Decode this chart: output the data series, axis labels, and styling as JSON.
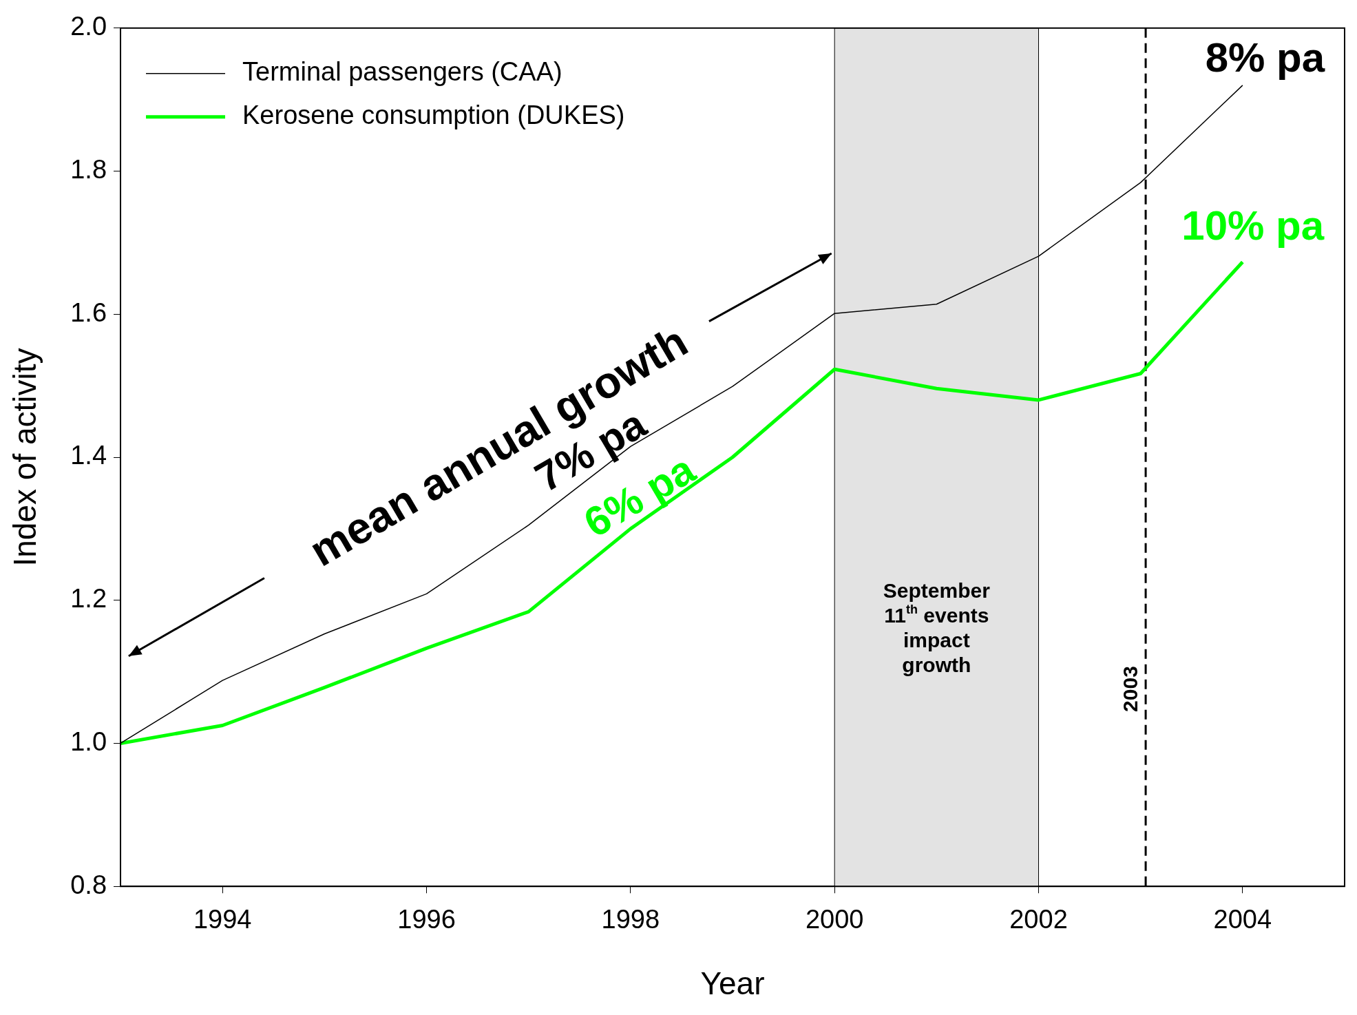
{
  "chart_data": {
    "type": "line",
    "xlabel": "Year",
    "ylabel": "Index of activity",
    "x": [
      1993,
      1994,
      1995,
      1996,
      1997,
      1998,
      1999,
      2000,
      2001,
      2002,
      2003,
      2004
    ],
    "series": [
      {
        "name": "Terminal passengers (CAA)",
        "color": "#000000",
        "values": [
          1.0,
          1.088,
          1.153,
          1.209,
          1.305,
          1.415,
          1.499,
          1.601,
          1.614,
          1.681,
          1.784,
          1.92
        ]
      },
      {
        "name": "Kerosene consumption (DUKES)",
        "color": "#00ff00",
        "values": [
          1.0,
          1.025,
          1.078,
          1.133,
          1.184,
          1.3,
          1.4,
          1.523,
          1.496,
          1.48,
          1.517,
          1.673
        ]
      }
    ],
    "xlim": [
      1993,
      2005
    ],
    "xticks": [
      1994,
      1996,
      1998,
      2000,
      2002,
      2004
    ],
    "ylim": [
      0.8,
      2.0
    ],
    "yticks": [
      {
        "value": 0.8,
        "label": "0.8"
      },
      {
        "value": 1.0,
        "label": "1.0"
      },
      {
        "value": 1.2,
        "label": "1.2"
      },
      {
        "value": 1.4,
        "label": "1.4"
      },
      {
        "value": 1.6,
        "label": "1.6"
      },
      {
        "value": 1.8,
        "label": "1.8"
      },
      {
        "value": 2.0,
        "label": "2.0"
      }
    ],
    "bands": [
      {
        "axis": "x",
        "from": 2000,
        "to": 2002,
        "label": "September 11$^{th}$ events impact growth",
        "color": "#e3e3e3"
      }
    ],
    "ref_lines": [
      {
        "axis": "x",
        "value": 2003.05,
        "label": "2003",
        "color": "#000000",
        "line_style": "dashed"
      }
    ],
    "annotations": [
      "mean annual growth",
      "7% pa",
      "6% pa",
      "8% pa",
      "10% pa"
    ],
    "grid": false,
    "legend": "top left"
  }
}
